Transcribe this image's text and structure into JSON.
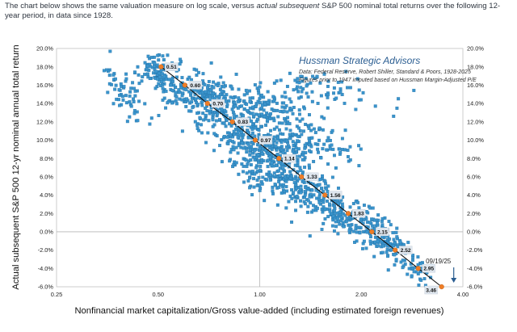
{
  "intro": {
    "part1": "The chart below shows the same valuation measure on log scale, versus ",
    "emph": "actual subsequent",
    "part2": " S&P 500 nominal total returns over the following 12-year period, in data since 1928."
  },
  "chart_data": {
    "type": "scatter",
    "x_scale": "log",
    "xlabel": "Nonfinancial market capitalization/Gross value-added (including estimated foreign revenues)",
    "ylabel": "Actual subsequent S&P 500 12-yr nominal annual total return",
    "xlim": [
      0.25,
      4.0
    ],
    "ylim": [
      -0.06,
      0.2
    ],
    "x_ticks": [
      {
        "value": 0.25,
        "label": "0.25"
      },
      {
        "value": 0.5,
        "label": "0.50"
      },
      {
        "value": 1.0,
        "label": "1.00"
      },
      {
        "value": 2.0,
        "label": "2.00"
      },
      {
        "value": 4.0,
        "label": "4.00"
      }
    ],
    "y_ticks": [
      {
        "value": 0.2,
        "label": "20.0%"
      },
      {
        "value": 0.18,
        "label": "18.0%"
      },
      {
        "value": 0.16,
        "label": "16.0%"
      },
      {
        "value": 0.14,
        "label": "14.0%"
      },
      {
        "value": 0.12,
        "label": "12.0%"
      },
      {
        "value": 0.1,
        "label": "10.0%"
      },
      {
        "value": 0.08,
        "label": "8.0%"
      },
      {
        "value": 0.06,
        "label": "6.0%"
      },
      {
        "value": 0.04,
        "label": "4.0%"
      },
      {
        "value": 0.02,
        "label": "2.0%"
      },
      {
        "value": 0.0,
        "label": "0.0%"
      },
      {
        "value": -0.02,
        "label": "-2.0%"
      },
      {
        "value": -0.04,
        "label": "-4.0%"
      },
      {
        "value": -0.06,
        "label": "-6.0%"
      }
    ],
    "gridlines": {
      "x": [
        1.0
      ],
      "y": [
        0.0
      ]
    },
    "brand": "Hussman Strategic Advisors",
    "source_lines": [
      "Data: Federal Reserve, Robert Shiller, Standard & Poors, 1928-2025",
      "Figures prior to 1947 imputed based on Hussman Margin-Adjusted P/E"
    ],
    "fit_line": [
      {
        "x": 0.51,
        "y": 0.18,
        "label": "0.51"
      },
      {
        "x": 0.6,
        "y": 0.16,
        "label": "0.60"
      },
      {
        "x": 0.7,
        "y": 0.14,
        "label": "0.70"
      },
      {
        "x": 0.83,
        "y": 0.12,
        "label": "0.83"
      },
      {
        "x": 0.97,
        "y": 0.1,
        "label": "0.97"
      },
      {
        "x": 1.14,
        "y": 0.08,
        "label": "1.14"
      },
      {
        "x": 1.33,
        "y": 0.06,
        "label": "1.33"
      },
      {
        "x": 1.56,
        "y": 0.04,
        "label": "1.56"
      },
      {
        "x": 1.83,
        "y": 0.02,
        "label": "1.83"
      },
      {
        "x": 2.15,
        "y": 0.0,
        "label": "2.15"
      },
      {
        "x": 2.52,
        "y": -0.02,
        "label": "2.52"
      },
      {
        "x": 2.95,
        "y": -0.04,
        "label": "2.95"
      },
      {
        "x": 3.46,
        "y": -0.06,
        "label": "3.46"
      }
    ],
    "annotation": {
      "label": "09/19/25",
      "x": 3.46,
      "y": -0.06
    },
    "colors": {
      "scatter": "#3a94cc",
      "scatter_edge": "#1f6ea3",
      "fit": "#111111",
      "marker": "#ef7d26",
      "label_box": "#dfe6ee",
      "annotation": "#2a5d91"
    },
    "scatter_clusters": [
      {
        "cx": 0.4,
        "cy": 0.155,
        "n": 70,
        "sx": 0.1,
        "sy": 0.016,
        "slope": -2.2
      },
      {
        "cx": 0.49,
        "cy": 0.176,
        "n": 55,
        "sx": 0.06,
        "sy": 0.01,
        "slope": -1.5
      },
      {
        "cx": 0.56,
        "cy": 0.158,
        "n": 90,
        "sx": 0.09,
        "sy": 0.012,
        "slope": -1.8
      },
      {
        "cx": 0.7,
        "cy": 0.143,
        "n": 140,
        "sx": 0.1,
        "sy": 0.014,
        "slope": -1.2
      },
      {
        "cx": 0.97,
        "cy": 0.135,
        "n": 160,
        "sx": 0.18,
        "sy": 0.011,
        "slope": -0.6
      },
      {
        "cx": 1.45,
        "cy": 0.155,
        "n": 90,
        "sx": 0.25,
        "sy": 0.012,
        "slope": -0.3
      },
      {
        "cx": 0.86,
        "cy": 0.105,
        "n": 150,
        "sx": 0.1,
        "sy": 0.016,
        "slope": -1.4
      },
      {
        "cx": 1.1,
        "cy": 0.085,
        "n": 170,
        "sx": 0.12,
        "sy": 0.015,
        "slope": -1.5
      },
      {
        "cx": 1.4,
        "cy": 0.098,
        "n": 110,
        "sx": 0.16,
        "sy": 0.011,
        "slope": -0.7
      },
      {
        "cx": 1.35,
        "cy": 0.05,
        "n": 160,
        "sx": 0.13,
        "sy": 0.016,
        "slope": -1.5
      },
      {
        "cx": 1.05,
        "cy": 0.055,
        "n": 60,
        "sx": 0.1,
        "sy": 0.01,
        "slope": -0.8
      },
      {
        "cx": 1.75,
        "cy": 0.02,
        "n": 130,
        "sx": 0.12,
        "sy": 0.012,
        "slope": -1.6
      },
      {
        "cx": 2.2,
        "cy": 0.002,
        "n": 80,
        "sx": 0.08,
        "sy": 0.01,
        "slope": -1.8
      },
      {
        "cx": 2.55,
        "cy": -0.018,
        "n": 60,
        "sx": 0.07,
        "sy": 0.01,
        "slope": -1.8
      },
      {
        "cx": 2.9,
        "cy": -0.038,
        "n": 40,
        "sx": 0.06,
        "sy": 0.008,
        "slope": -1.8
      }
    ]
  }
}
